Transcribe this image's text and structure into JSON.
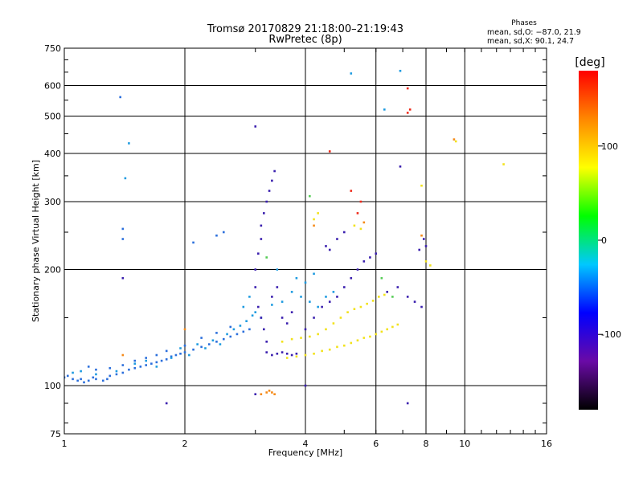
{
  "chart_data": {
    "type": "scatter",
    "title": "Tromsø 20170829 21:18:00–21:19:43",
    "subtitle": "RwPretec (8p)",
    "xlabel": "Frequency [MHz]",
    "ylabel": "Stationary phase Virtual Height [km]",
    "x_scale": "log",
    "y_scale": "log",
    "xlim": [
      1,
      16
    ],
    "ylim": [
      75,
      750
    ],
    "x_ticks": [
      1,
      2,
      4,
      6,
      8,
      10,
      16
    ],
    "y_ticks": [
      75,
      100,
      200,
      300,
      400,
      500,
      600,
      750
    ],
    "grid": true,
    "info_block": {
      "heading": "Phases",
      "line1": "mean, sd,O: −87.0, 21.9",
      "line2": "mean, sd,X:  90.1, 24.7"
    },
    "colorbar": {
      "label": "[deg]",
      "min": -180,
      "max": 180,
      "ticks": [
        100,
        0,
        -100
      ],
      "stops": [
        "#000000",
        "#6a0aa6",
        "#0000ff",
        "#00c8ff",
        "#00ff00",
        "#ffff00",
        "#ff8800",
        "#ff0000"
      ]
    },
    "series": [
      {
        "phase_deg": -110,
        "color": "#2b6fdc",
        "points": [
          [
            1.0,
            105
          ],
          [
            1.02,
            106
          ],
          [
            1.05,
            104
          ],
          [
            1.08,
            103
          ],
          [
            1.1,
            104
          ],
          [
            1.12,
            102
          ],
          [
            1.15,
            103
          ],
          [
            1.18,
            105
          ],
          [
            1.2,
            104
          ],
          [
            1.25,
            103
          ],
          [
            1.28,
            104
          ],
          [
            1.3,
            106
          ],
          [
            1.35,
            107
          ],
          [
            1.4,
            108
          ],
          [
            1.45,
            110
          ],
          [
            1.5,
            111
          ],
          [
            1.55,
            112
          ],
          [
            1.6,
            113
          ],
          [
            1.65,
            114
          ],
          [
            1.7,
            115
          ],
          [
            1.75,
            116
          ],
          [
            1.8,
            117
          ],
          [
            1.85,
            119
          ],
          [
            1.9,
            120
          ],
          [
            1.95,
            121
          ],
          [
            2.0,
            122
          ],
          [
            2.1,
            124
          ],
          [
            2.2,
            126
          ],
          [
            2.3,
            128
          ],
          [
            2.4,
            130
          ],
          [
            2.5,
            132
          ],
          [
            2.6,
            134
          ],
          [
            2.7,
            136
          ],
          [
            2.8,
            138
          ],
          [
            2.9,
            140
          ],
          [
            1.15,
            112
          ],
          [
            1.2,
            110
          ],
          [
            1.3,
            111
          ],
          [
            1.4,
            113
          ],
          [
            1.5,
            116
          ],
          [
            1.6,
            118
          ],
          [
            1.7,
            120
          ],
          [
            1.8,
            123
          ],
          [
            2.0,
            127
          ],
          [
            2.2,
            133
          ],
          [
            2.4,
            137
          ],
          [
            2.6,
            142
          ],
          [
            2.1,
            235
          ],
          [
            2.4,
            245
          ],
          [
            2.5,
            250
          ],
          [
            1.38,
            560
          ],
          [
            1.4,
            255
          ],
          [
            1.4,
            240
          ]
        ]
      },
      {
        "phase_deg": -80,
        "color": "#1e9be0",
        "points": [
          [
            1.05,
            108
          ],
          [
            1.1,
            109
          ],
          [
            1.2,
            107
          ],
          [
            1.35,
            109
          ],
          [
            1.5,
            114
          ],
          [
            1.6,
            116
          ],
          [
            1.7,
            112
          ],
          [
            1.85,
            118
          ],
          [
            1.95,
            125
          ],
          [
            2.05,
            120
          ],
          [
            2.15,
            128
          ],
          [
            2.25,
            125
          ],
          [
            2.35,
            131
          ],
          [
            2.45,
            128
          ],
          [
            2.55,
            136
          ],
          [
            2.65,
            140
          ],
          [
            2.75,
            143
          ],
          [
            2.85,
            147
          ],
          [
            2.95,
            152
          ],
          [
            2.8,
            160
          ],
          [
            2.9,
            170
          ],
          [
            3.0,
            155
          ],
          [
            3.1,
            150
          ],
          [
            3.3,
            162
          ],
          [
            3.5,
            165
          ],
          [
            3.7,
            175
          ],
          [
            3.9,
            170
          ],
          [
            4.1,
            165
          ],
          [
            4.3,
            160
          ],
          [
            4.5,
            170
          ],
          [
            4.7,
            175
          ],
          [
            3.4,
            200
          ],
          [
            3.8,
            190
          ],
          [
            4.0,
            185
          ],
          [
            4.2,
            195
          ],
          [
            1.42,
            345
          ],
          [
            1.45,
            425
          ],
          [
            6.9,
            655
          ],
          [
            5.2,
            645
          ],
          [
            6.3,
            520
          ]
        ]
      },
      {
        "phase_deg": -140,
        "color": "#3a1fae",
        "points": [
          [
            3.0,
            180
          ],
          [
            3.0,
            200
          ],
          [
            3.05,
            220
          ],
          [
            3.1,
            240
          ],
          [
            3.1,
            260
          ],
          [
            3.15,
            280
          ],
          [
            3.2,
            300
          ],
          [
            3.25,
            320
          ],
          [
            3.3,
            340
          ],
          [
            3.35,
            360
          ],
          [
            3.05,
            160
          ],
          [
            3.1,
            150
          ],
          [
            3.15,
            140
          ],
          [
            3.2,
            130
          ],
          [
            3.2,
            122
          ],
          [
            3.3,
            120
          ],
          [
            3.4,
            121
          ],
          [
            3.5,
            122
          ],
          [
            3.6,
            121
          ],
          [
            3.7,
            120
          ],
          [
            3.8,
            121
          ],
          [
            3.3,
            170
          ],
          [
            3.4,
            180
          ],
          [
            3.5,
            150
          ],
          [
            3.6,
            145
          ],
          [
            3.7,
            155
          ],
          [
            4.0,
            140
          ],
          [
            4.2,
            150
          ],
          [
            4.4,
            160
          ],
          [
            4.6,
            165
          ],
          [
            4.8,
            170
          ],
          [
            5.0,
            180
          ],
          [
            5.2,
            190
          ],
          [
            5.4,
            200
          ],
          [
            5.6,
            210
          ],
          [
            5.8,
            215
          ],
          [
            6.0,
            220
          ],
          [
            6.4,
            175
          ],
          [
            6.8,
            180
          ],
          [
            7.2,
            170
          ],
          [
            7.5,
            165
          ],
          [
            7.8,
            160
          ],
          [
            7.9,
            240
          ],
          [
            8.0,
            230
          ],
          [
            7.7,
            225
          ],
          [
            4.5,
            230
          ],
          [
            4.6,
            225
          ],
          [
            4.8,
            240
          ],
          [
            5.0,
            250
          ],
          [
            3.0,
            95
          ],
          [
            1.8,
            90
          ],
          [
            4.0,
            100
          ],
          [
            7.2,
            90
          ],
          [
            6.9,
            370
          ],
          [
            1.4,
            190
          ],
          [
            3.0,
            470
          ]
        ]
      },
      {
        "phase_deg": 110,
        "color": "#f2e21b",
        "points": [
          [
            3.6,
            118
          ],
          [
            3.8,
            119
          ],
          [
            4.0,
            120
          ],
          [
            4.2,
            121
          ],
          [
            4.4,
            123
          ],
          [
            4.6,
            124
          ],
          [
            4.8,
            126
          ],
          [
            5.0,
            127
          ],
          [
            5.2,
            129
          ],
          [
            5.4,
            131
          ],
          [
            5.6,
            133
          ],
          [
            5.8,
            134
          ],
          [
            6.0,
            136
          ],
          [
            6.2,
            138
          ],
          [
            6.4,
            140
          ],
          [
            6.6,
            142
          ],
          [
            6.8,
            144
          ],
          [
            3.5,
            130
          ],
          [
            3.7,
            132
          ],
          [
            3.9,
            133
          ],
          [
            4.1,
            134
          ],
          [
            4.3,
            136
          ],
          [
            4.5,
            140
          ],
          [
            4.7,
            145
          ],
          [
            4.9,
            150
          ],
          [
            5.1,
            155
          ],
          [
            5.3,
            158
          ],
          [
            5.5,
            160
          ],
          [
            5.7,
            163
          ],
          [
            5.9,
            166
          ],
          [
            6.1,
            170
          ],
          [
            6.3,
            172
          ],
          [
            4.2,
            270
          ],
          [
            4.3,
            280
          ],
          [
            5.3,
            260
          ],
          [
            5.5,
            255
          ],
          [
            7.8,
            330
          ],
          [
            8.0,
            210
          ],
          [
            8.2,
            205
          ],
          [
            12.5,
            375
          ],
          [
            9.5,
            430
          ]
        ]
      },
      {
        "phase_deg": 160,
        "color": "#ee2a1a",
        "points": [
          [
            7.2,
            590
          ],
          [
            7.3,
            520
          ],
          [
            7.2,
            510
          ],
          [
            5.5,
            300
          ],
          [
            5.4,
            280
          ],
          [
            4.6,
            405
          ],
          [
            5.2,
            320
          ]
        ]
      },
      {
        "phase_deg": 135,
        "color": "#f58a18",
        "points": [
          [
            3.1,
            95
          ],
          [
            3.2,
            96
          ],
          [
            3.25,
            97
          ],
          [
            3.3,
            96
          ],
          [
            3.35,
            95
          ],
          [
            1.4,
            120
          ],
          [
            2.0,
            140
          ],
          [
            4.2,
            260
          ],
          [
            5.6,
            265
          ],
          [
            9.4,
            435
          ],
          [
            7.8,
            245
          ]
        ]
      },
      {
        "phase_deg": 45,
        "color": "#55cc55",
        "points": [
          [
            3.2,
            215
          ],
          [
            6.6,
            170
          ],
          [
            6.2,
            190
          ],
          [
            4.1,
            310
          ]
        ]
      }
    ]
  }
}
